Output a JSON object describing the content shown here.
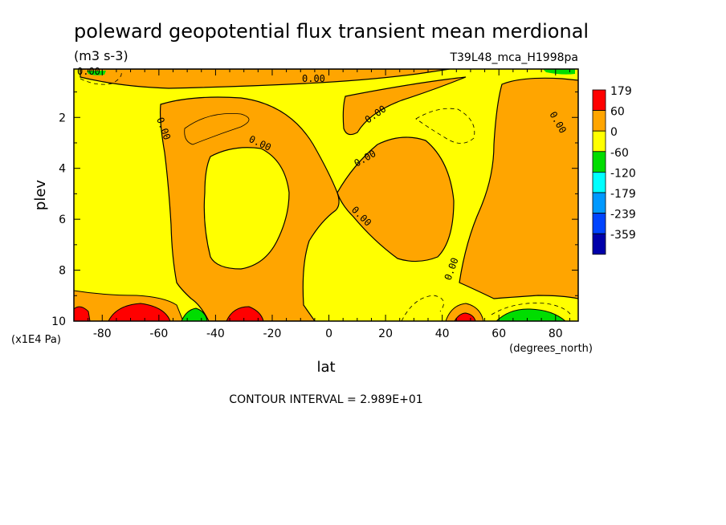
{
  "chart_data": {
    "type": "heatmap",
    "title": "poleward geopotential flux transient mean merdional",
    "units": "(m3 s-3)",
    "run_label": "T39L48_mca_H1998pa",
    "xlabel": "lat",
    "x_units": "(degrees_north)",
    "ylabel": "plev",
    "y_units": "(x1E4 Pa)",
    "xlim": [
      -90,
      88
    ],
    "ylim": [
      0.1,
      10
    ],
    "y_inverted": true,
    "x_ticks": [
      -80,
      -60,
      -40,
      -20,
      0,
      20,
      40,
      60,
      80
    ],
    "y_ticks": [
      2,
      4,
      6,
      8,
      10
    ],
    "contour_interval_text": "CONTOUR INTERVAL = 2.989E+01",
    "contour_label_text": "0.00",
    "colorbar": {
      "levels": [
        "179",
        "60",
        "0",
        "-60",
        "-120",
        "-179",
        "-239",
        "-359"
      ],
      "colors": [
        "#ff0000",
        "#ffa500",
        "#ffff00",
        "#00dd00",
        "#00ffff",
        "#0099ff",
        "#0044ff",
        "#0000aa"
      ]
    },
    "colors": {
      "positive": "#ffa500",
      "strong_positive": "#ff0000",
      "near_zero": "#ffff00",
      "negative": "#00dd00"
    }
  }
}
